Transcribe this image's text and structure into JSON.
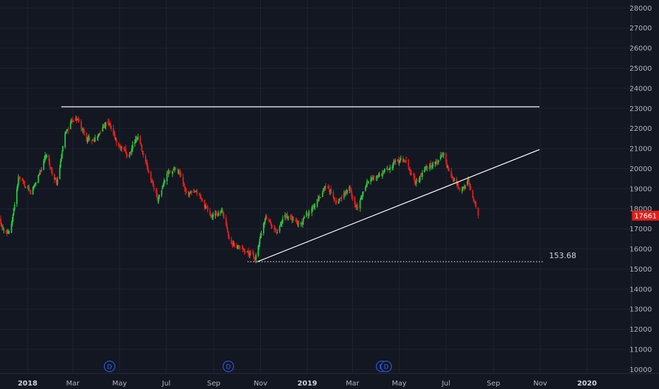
{
  "chart_data": {
    "type": "candlestick",
    "theme": {
      "background": "#131722",
      "grid": "#1e2330",
      "up": "#26c940",
      "down": "#e0201c",
      "trendline": "#ffffff",
      "axis_text": "#b2b5be"
    },
    "y_ticks": [
      10000,
      11000,
      12000,
      13000,
      14000,
      15000,
      16000,
      17000,
      18000,
      19000,
      20000,
      21000,
      22000,
      23000,
      24000,
      25000,
      26000,
      27000,
      28000
    ],
    "ylim": [
      9800,
      28400
    ],
    "x_ticks": [
      {
        "label": "2018",
        "date": "2018-01-01",
        "year": true
      },
      {
        "label": "Mar",
        "date": "2018-03-01",
        "year": false
      },
      {
        "label": "May",
        "date": "2018-05-01",
        "year": false
      },
      {
        "label": "Jul",
        "date": "2018-07-01",
        "year": false
      },
      {
        "label": "Sep",
        "date": "2018-09-01",
        "year": false
      },
      {
        "label": "Nov",
        "date": "2018-11-01",
        "year": false
      },
      {
        "label": "2019",
        "date": "2019-01-01",
        "year": true
      },
      {
        "label": "Mar",
        "date": "2019-03-01",
        "year": false
      },
      {
        "label": "May",
        "date": "2019-05-01",
        "year": false
      },
      {
        "label": "Jul",
        "date": "2019-07-01",
        "year": false
      },
      {
        "label": "Sep",
        "date": "2019-09-01",
        "year": false
      },
      {
        "label": "Nov",
        "date": "2019-11-01",
        "year": false
      },
      {
        "label": "2020",
        "date": "2020-01-01",
        "year": true
      }
    ],
    "xlim": [
      "2017-11-26",
      "2020-02-28"
    ],
    "keypoints": [
      [
        "2017-11-26",
        17200
      ],
      [
        "2017-12-10",
        16900
      ],
      [
        "2017-12-20",
        19500
      ],
      [
        "2018-01-05",
        18700
      ],
      [
        "2018-01-25",
        20600
      ],
      [
        "2018-02-08",
        19200
      ],
      [
        "2018-02-20",
        21800
      ],
      [
        "2018-03-05",
        22700
      ],
      [
        "2018-03-20",
        21400
      ],
      [
        "2018-04-05",
        21700
      ],
      [
        "2018-04-15",
        22500
      ],
      [
        "2018-04-28",
        21200
      ],
      [
        "2018-05-12",
        20600
      ],
      [
        "2018-05-25",
        21600
      ],
      [
        "2018-06-08",
        19800
      ],
      [
        "2018-06-20",
        18500
      ],
      [
        "2018-07-02",
        19700
      ],
      [
        "2018-07-15",
        20100
      ],
      [
        "2018-07-28",
        18800
      ],
      [
        "2018-08-12",
        18700
      ],
      [
        "2018-08-28",
        17600
      ],
      [
        "2018-09-12",
        17800
      ],
      [
        "2018-09-25",
        16200
      ],
      [
        "2018-10-10",
        16000
      ],
      [
        "2018-10-25",
        15500
      ],
      [
        "2018-11-08",
        17800
      ],
      [
        "2018-11-22",
        16800
      ],
      [
        "2018-12-05",
        17600
      ],
      [
        "2018-12-22",
        17200
      ],
      [
        "2019-01-10",
        18200
      ],
      [
        "2019-01-25",
        19200
      ],
      [
        "2019-02-10",
        18400
      ],
      [
        "2019-02-25",
        19000
      ],
      [
        "2019-03-08",
        18000
      ],
      [
        "2019-03-20",
        19400
      ],
      [
        "2019-04-10",
        19700
      ],
      [
        "2019-04-25",
        20300
      ],
      [
        "2019-05-08",
        20400
      ],
      [
        "2019-05-22",
        19300
      ],
      [
        "2019-06-05",
        20000
      ],
      [
        "2019-06-18",
        20300
      ],
      [
        "2019-06-28",
        20800
      ],
      [
        "2019-07-08",
        19500
      ],
      [
        "2019-07-20",
        18800
      ],
      [
        "2019-07-30",
        19300
      ],
      [
        "2019-08-12",
        17661
      ]
    ],
    "start_price": 17500,
    "last_price": 17661,
    "last_price_label": "17661",
    "lines": [
      {
        "name": "resistance",
        "from": [
          "2018-02-14",
          23080
        ],
        "to": [
          "2019-10-31",
          23080
        ],
        "style": "solid"
      },
      {
        "name": "uptrend",
        "from": [
          "2018-10-28",
          15368
        ],
        "to": [
          "2019-10-31",
          20950
        ],
        "style": "solid"
      },
      {
        "name": "support",
        "from": [
          "2018-10-15",
          15368
        ],
        "to": [
          "2019-11-05",
          15368
        ],
        "style": "dotted",
        "label": "153.68"
      }
    ],
    "dividend_markers": [
      {
        "date": "2018-04-18",
        "label": "D"
      },
      {
        "date": "2018-09-20",
        "label": "D"
      },
      {
        "date": "2019-04-08",
        "label": "D"
      },
      {
        "date": "2019-04-14",
        "label": "D"
      }
    ]
  }
}
